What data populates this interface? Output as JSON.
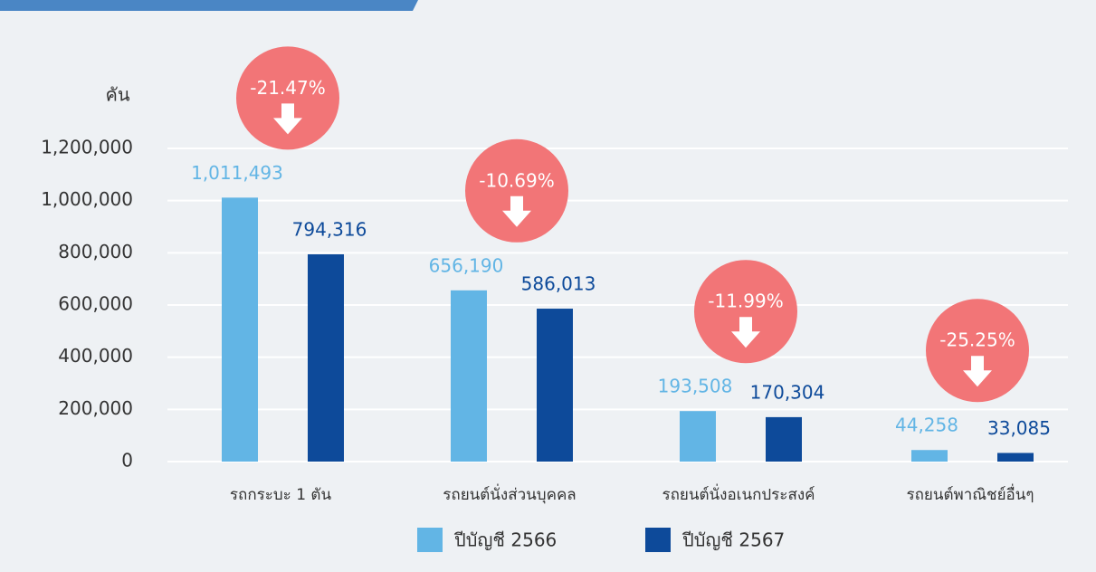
{
  "chart_data": {
    "type": "bar",
    "y_label": "คัน",
    "categories": [
      "รถกระบะ 1 ตัน",
      "รถยนต์นั่งส่วนบุคคล",
      "รถยนต์นั่งอเนกประสงค์",
      "รถยนต์พาณิชย์อื่นๆ"
    ],
    "series": [
      {
        "name": "ปีบัญชี 2566",
        "color": "#62b5e5",
        "values": [
          1011493,
          656190,
          193508,
          44258
        ],
        "value_labels": [
          "1,011,493",
          "656,190",
          "193,508",
          "44,258"
        ]
      },
      {
        "name": "ปีบัญชี 2567",
        "color": "#0d4a9a",
        "values": [
          794316,
          586013,
          170304,
          33085
        ],
        "value_labels": [
          "794,316",
          "586,013",
          "170,304",
          "33,085"
        ]
      }
    ],
    "annotations": [
      "-21.47%",
      "-10.69%",
      "-11.99%",
      "-25.25%"
    ],
    "annotation_color": "#f27577",
    "ylim": [
      0,
      1200000
    ],
    "yticks": [
      0,
      {
        "value": 200000,
        "label": "200,000"
      },
      {
        "value": 400000,
        "label": "400,000"
      },
      {
        "value": 600000,
        "label": "600,000"
      },
      {
        "value": 800000,
        "label": "800,000"
      },
      {
        "value": 1000000,
        "label": "1,000,000"
      },
      {
        "value": 1200000,
        "label": "1,200,000"
      }
    ],
    "grid": true
  }
}
